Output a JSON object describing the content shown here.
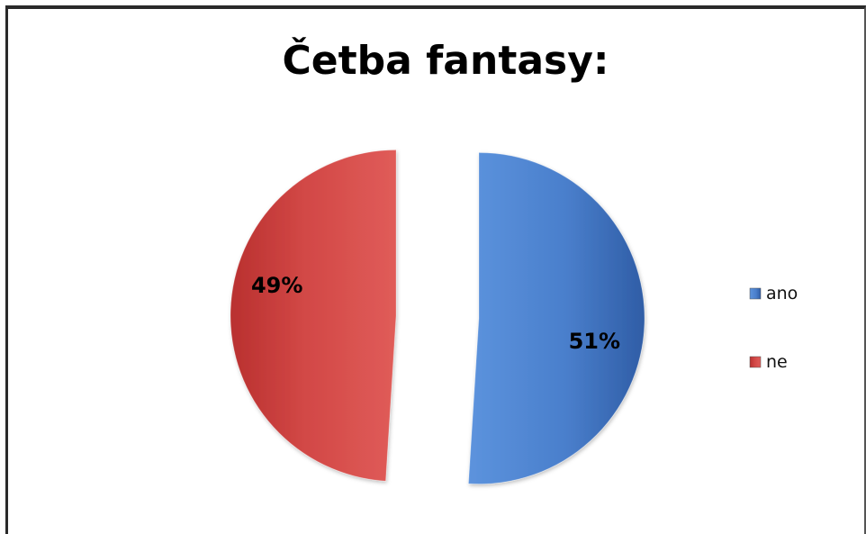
{
  "chart_data": {
    "type": "pie",
    "title": "Četba fantasy:",
    "slices": [
      {
        "label": "ano",
        "value": 51,
        "display": "51%",
        "color": "#4a7fcc"
      },
      {
        "label": "ne",
        "value": 49,
        "display": "49%",
        "color": "#d24846"
      }
    ],
    "exploded": true,
    "legend_position": "right"
  }
}
